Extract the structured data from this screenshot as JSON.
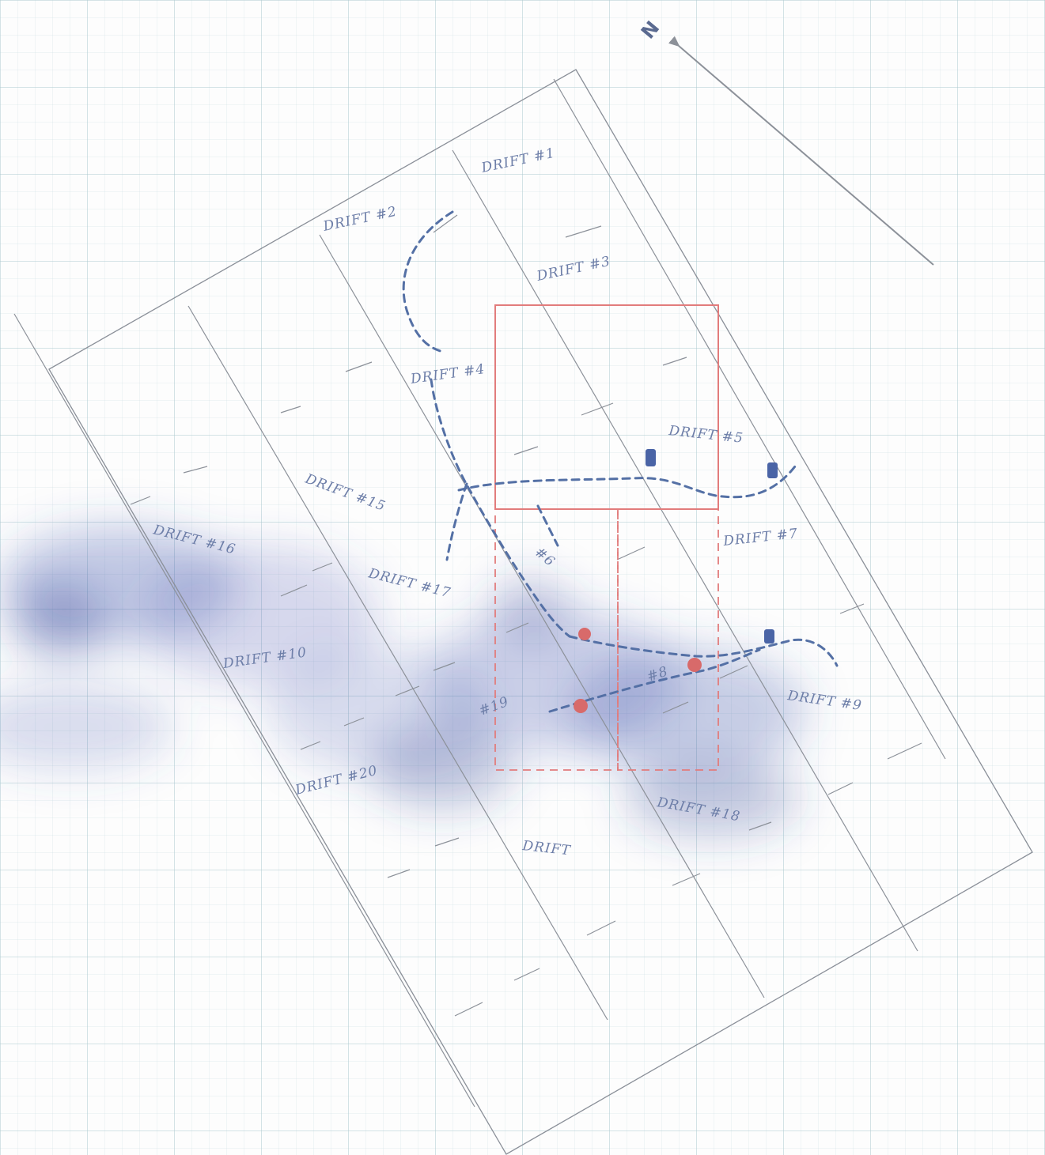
{
  "north": {
    "label": "N",
    "icon": "north-arrow-icon"
  },
  "drift_labels": [
    {
      "id": "drift-1",
      "text": "DRIFT #1"
    },
    {
      "id": "drift-2",
      "text": "DRIFT #2"
    },
    {
      "id": "drift-3",
      "text": "DRIFT #3"
    },
    {
      "id": "drift-4",
      "text": "DRIFT #4"
    },
    {
      "id": "drift-5",
      "text": "DRIFT #5"
    },
    {
      "id": "drift-6",
      "text": "#6"
    },
    {
      "id": "drift-7",
      "text": "DRIFT #7"
    },
    {
      "id": "drift-9",
      "text": "DRIFT #9"
    },
    {
      "id": "drift-10",
      "text": "DRIFT #10"
    },
    {
      "id": "drift-11",
      "text": "DRIFT"
    },
    {
      "id": "drift-15",
      "text": "DRIFT #15"
    },
    {
      "id": "drift-16",
      "text": "DRIFT #16"
    },
    {
      "id": "drift-17",
      "text": "DRIFT #17"
    },
    {
      "id": "drift-18",
      "text": "DRIFT #18"
    },
    {
      "id": "drift-19",
      "text": "#19"
    },
    {
      "id": "drift-20",
      "text": "DRIFT #20"
    },
    {
      "id": "drift-8",
      "text": "#8"
    }
  ],
  "colors": {
    "grid": "#aac8cd",
    "pencil": "#8c9199",
    "ink_blue": "#5470a5",
    "ink_red": "#e27c7c",
    "marker_blue": "#4a64a6",
    "marker_red": "#d86a6a",
    "heat": "#3c50aa"
  }
}
